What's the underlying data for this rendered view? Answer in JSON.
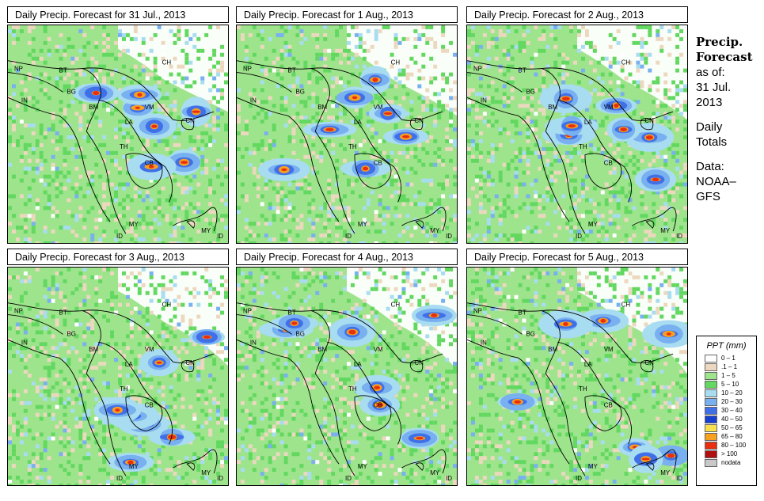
{
  "panels": [
    {
      "title": "Daily Precip. Forecast for  31 Jul., 2013"
    },
    {
      "title": "Daily Precip. Forecast for  1 Aug., 2013"
    },
    {
      "title": "Daily Precip. Forecast for  2 Aug., 2013"
    },
    {
      "title": "Daily Precip. Forecast for  3 Aug., 2013"
    },
    {
      "title": "Daily Precip. Forecast for  4 Aug., 2013"
    },
    {
      "title": "Daily Precip. Forecast for  5 Aug., 2013"
    }
  ],
  "country_labels": [
    "NP",
    "BT",
    "BG",
    "IN",
    "CH",
    "BM",
    "VM",
    "LA",
    "CN",
    "TH",
    "CB",
    "MY",
    "ID",
    "MY",
    "ID"
  ],
  "side": {
    "head_line1": "Precip.",
    "head_line2": "Forecast",
    "asof_line1": "as of:",
    "asof_line2": "31 Jul.",
    "asof_line3": "2013",
    "daily_line1": "Daily",
    "daily_line2": "Totals",
    "data_line1": "Data:",
    "data_line2": "NOAA–",
    "data_line3": "GFS"
  },
  "legend": {
    "title": "PPT (mm)",
    "items": [
      {
        "label": "0 – 1",
        "color": "#ffffff"
      },
      {
        "label": ".1 – 1",
        "color": "#ecd8bf"
      },
      {
        "label": "1 – 5",
        "color": "#9ee48c"
      },
      {
        "label": "5 – 10",
        "color": "#62d860"
      },
      {
        "label": "10 – 20",
        "color": "#a8dcf0"
      },
      {
        "label": "20 – 30",
        "color": "#78b0f0"
      },
      {
        "label": "30 – 40",
        "color": "#4070e8"
      },
      {
        "label": "40 – 50",
        "color": "#1840d0"
      },
      {
        "label": "50 – 65",
        "color": "#f8e050"
      },
      {
        "label": "65 – 80",
        "color": "#f8a020"
      },
      {
        "label": "80 – 100",
        "color": "#e83010"
      },
      {
        "label": "> 100",
        "color": "#b01010"
      },
      {
        "label": "nodata",
        "color": "#c8c8c8"
      }
    ]
  }
}
